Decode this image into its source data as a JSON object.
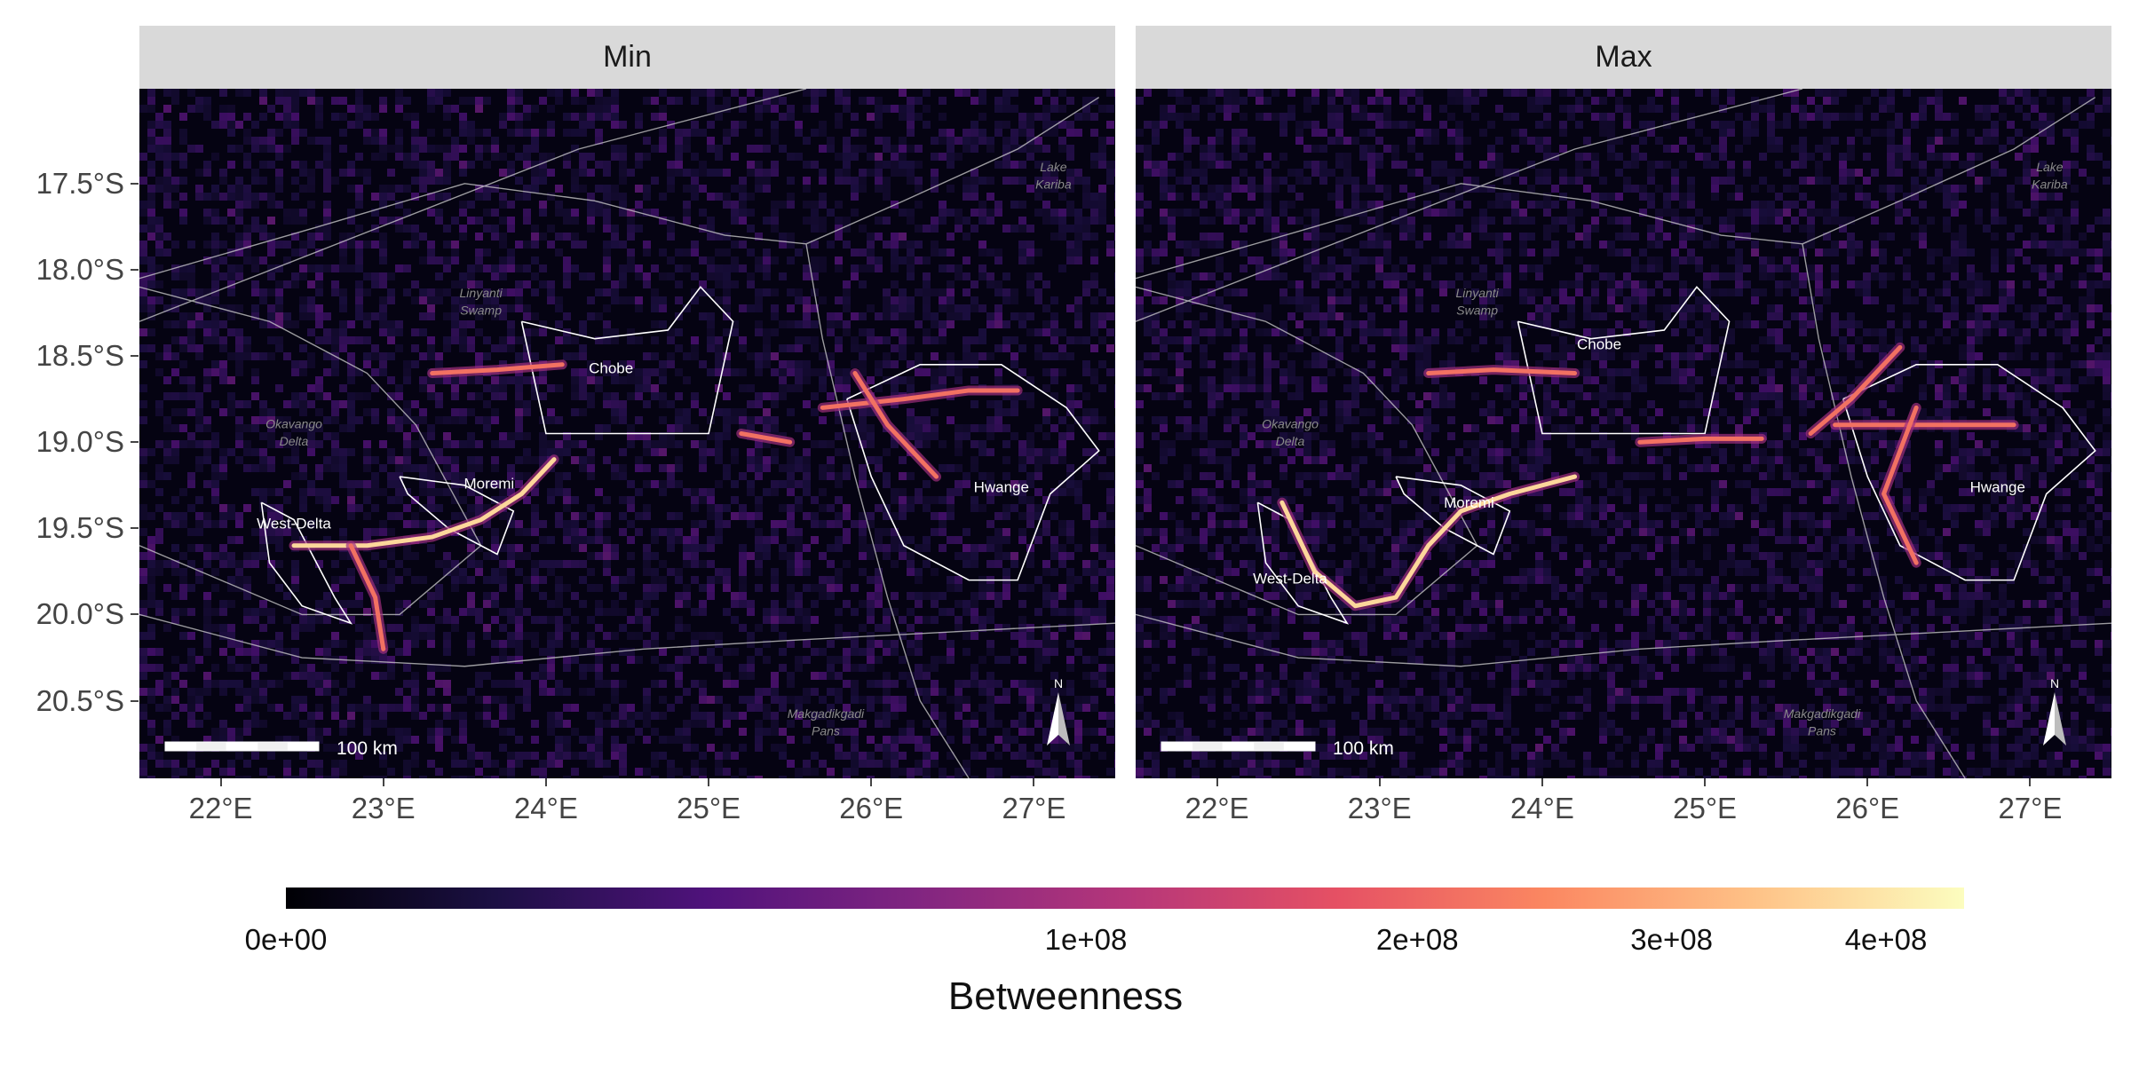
{
  "facets": [
    {
      "name": "Min",
      "title": "Min"
    },
    {
      "name": "Max",
      "title": "Max"
    }
  ],
  "y_axis": {
    "ticks": [
      "17.5°S",
      "18.0°S",
      "18.5°S",
      "19.0°S",
      "19.5°S",
      "20.0°S",
      "20.5°S"
    ],
    "values": [
      -17.5,
      -18.0,
      -18.5,
      -19.0,
      -19.5,
      -20.0,
      -20.5
    ]
  },
  "x_axis": {
    "ticks": [
      "22°E",
      "23°E",
      "24°E",
      "25°E",
      "26°E",
      "27°E"
    ],
    "values": [
      22,
      23,
      24,
      25,
      26,
      27
    ]
  },
  "extent": {
    "lon": [
      21.5,
      27.5
    ],
    "lat": [
      -20.95,
      -16.95
    ]
  },
  "place_labels": {
    "white": [
      {
        "text": "Chobe",
        "lon": 24.4,
        "lat": -18.6
      },
      {
        "text": "Moremi",
        "lon": 23.65,
        "lat": -19.27
      },
      {
        "text": "West-Delta",
        "lon": 22.45,
        "lat": -19.5
      },
      {
        "text": "Hwange",
        "lon": 26.8,
        "lat": -19.29
      }
    ],
    "grey": [
      {
        "text": "Lake",
        "lon": 27.12,
        "lat": -17.43
      },
      {
        "text": "Kariba",
        "lon": 27.12,
        "lat": -17.53
      },
      {
        "text": "Linyanti",
        "lon": 23.6,
        "lat": -18.16
      },
      {
        "text": "Swamp",
        "lon": 23.6,
        "lat": -18.26
      },
      {
        "text": "Okavango",
        "lon": 22.45,
        "lat": -18.92
      },
      {
        "text": "Delta",
        "lon": 22.45,
        "lat": -19.02
      },
      {
        "text": "Makgadikgadi",
        "lon": 25.72,
        "lat": -20.6
      },
      {
        "text": "Pans",
        "lon": 25.72,
        "lat": -20.7
      }
    ],
    "max_overrides": [
      {
        "text": "Chobe",
        "lon": 24.35,
        "lat": -18.46
      },
      {
        "text": "Moremi",
        "lon": 23.55,
        "lat": -19.38
      },
      {
        "text": "West-Delta",
        "lon": 22.45,
        "lat": -19.82
      }
    ]
  },
  "scale_bar": {
    "label": "100 km"
  },
  "north_arrow": {
    "label": "N"
  },
  "legend": {
    "title": "Betweenness",
    "ticks": [
      "0e+00",
      "1e+08",
      "2e+08",
      "3e+08",
      "4e+08"
    ],
    "values": [
      0,
      100000000,
      200000000,
      300000000,
      400000000
    ],
    "scale": "sqrt",
    "max": 440000000,
    "colormap": "magma",
    "colors": [
      "#000004",
      "#1c1044",
      "#4f127b",
      "#812581",
      "#b5367a",
      "#e55064",
      "#fb8761",
      "#fec287",
      "#fcfdbf"
    ]
  },
  "raster_background": "#050312"
}
